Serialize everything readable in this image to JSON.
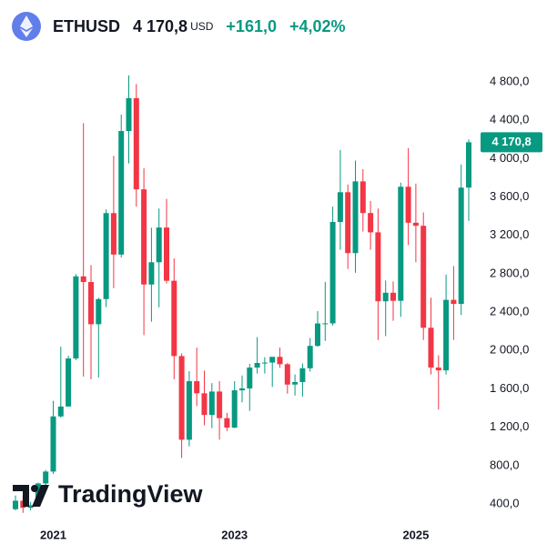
{
  "header": {
    "symbol": "ETHUSD",
    "price": "4 170,8",
    "currency": "USD",
    "change": "+161,0",
    "change_percent": "+4,02%"
  },
  "brand": "TradingView",
  "chart_data": {
    "type": "candlestick",
    "categories": [
      null,
      null,
      null,
      null,
      null,
      "2021",
      null,
      null,
      null,
      null,
      null,
      null,
      null,
      null,
      null,
      null,
      null,
      null,
      null,
      null,
      null,
      null,
      null,
      null,
      null,
      null,
      null,
      null,
      null,
      "2023",
      null,
      null,
      null,
      null,
      null,
      null,
      null,
      null,
      null,
      null,
      null,
      null,
      null,
      null,
      null,
      null,
      null,
      null,
      null,
      null,
      null,
      null,
      null,
      "2025",
      null,
      null,
      null,
      null,
      null,
      null,
      null
    ],
    "series": [
      {
        "open": [
          346,
          434,
          360,
          386,
          614,
          738,
          1313,
          1416,
          1917,
          2773,
          2714,
          2274,
          2536,
          3432,
          3000,
          4288,
          4631,
          3680,
          2688,
          2920,
          3282,
          2727,
          1942,
          1070,
          1680,
          1554,
          1328,
          1572,
          1295,
          1196,
          1585,
          1605,
          1822,
          1870,
          1874,
          1934,
          1857,
          1645,
          1671,
          1815,
          2048,
          2282,
          2283,
          3340,
          3650,
          3015,
          3763,
          3433,
          3232,
          2513,
          2602,
          2518,
          3707,
          3332,
          3300,
          2237,
          1822,
          1793,
          2528,
          2486,
          3698
        ],
        "high": [
          488,
          489,
          420,
          623,
          755,
          1475,
          2040,
          1945,
          2797,
          4370,
          2891,
          2550,
          3470,
          4030,
          4460,
          4868,
          4778,
          3900,
          3280,
          3480,
          3580,
          2960,
          1970,
          1785,
          2030,
          1790,
          1660,
          1680,
          1350,
          1680,
          1740,
          1860,
          2140,
          1930,
          1930,
          2030,
          1870,
          1750,
          1865,
          2130,
          2410,
          2715,
          3500,
          4090,
          3730,
          3980,
          3890,
          3560,
          3480,
          2730,
          2720,
          3750,
          4110,
          3740,
          3440,
          2550,
          1950,
          2790,
          2880,
          3940,
          4200
        ],
        "low": [
          335,
          308,
          335,
          374,
          530,
          714,
          1300,
          1430,
          1900,
          1728,
          1700,
          1719,
          2452,
          2650,
          2970,
          3950,
          3500,
          2160,
          2300,
          2450,
          2700,
          1700,
          880,
          1000,
          1420,
          1220,
          1190,
          1070,
          1160,
          1190,
          1460,
          1370,
          1760,
          1760,
          1620,
          1820,
          1550,
          1530,
          1520,
          1780,
          2040,
          2100,
          2260,
          3050,
          2850,
          2810,
          3240,
          3050,
          2110,
          2150,
          2310,
          2350,
          3100,
          2920,
          2110,
          1750,
          1385,
          1750,
          2110,
          2370,
          3350
        ],
        "close": [
          434,
          360,
          386,
          614,
          738,
          1313,
          1416,
          1917,
          2773,
          2714,
          2274,
          2536,
          3432,
          3000,
          4288,
          4631,
          3680,
          2688,
          2920,
          3282,
          2727,
          1942,
          1070,
          1680,
          1554,
          1328,
          1572,
          1295,
          1196,
          1585,
          1605,
          1822,
          1870,
          1874,
          1934,
          1857,
          1645,
          1671,
          1815,
          2048,
          2282,
          2283,
          3340,
          3650,
          3015,
          3763,
          3433,
          3232,
          2513,
          2602,
          2518,
          3707,
          3332,
          3300,
          2237,
          1822,
          1793,
          2528,
          2486,
          3698,
          4170.8
        ]
      }
    ],
    "up_color": "#089981",
    "down_color": "#f23645",
    "ylim": [
      200,
      5100
    ],
    "yticks": [
      {
        "value": 400,
        "label": "400,0"
      },
      {
        "value": 800,
        "label": "800,0"
      },
      {
        "value": 1200,
        "label": "1 200,0"
      },
      {
        "value": 1600,
        "label": "1 600,0"
      },
      {
        "value": 2000,
        "label": "2 000,0"
      },
      {
        "value": 2400,
        "label": "2 400,0"
      },
      {
        "value": 2800,
        "label": "2 800,0"
      },
      {
        "value": 3200,
        "label": "3 200,0"
      },
      {
        "value": 3600,
        "label": "3 600,0"
      },
      {
        "value": 4000,
        "label": "4 000,0"
      },
      {
        "value": 4400,
        "label": "4 400,0"
      },
      {
        "value": 4800,
        "label": "4 800,0"
      }
    ],
    "grid": false
  }
}
